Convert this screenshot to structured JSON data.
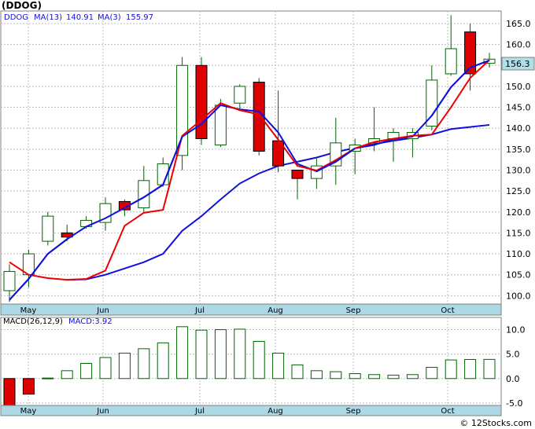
{
  "ticker_title": "(DDOG)",
  "credit": "© 12Stocks.com",
  "colors": {
    "up": "#006400",
    "down": "#dd0000",
    "ma_fast": "#ee0000",
    "ma_slow": "#1010dd",
    "axis_bar": "#add8e6",
    "grid": "#bdbdbd",
    "macd_bar": "#006400",
    "price_tag": "#b0e0e6"
  },
  "legend": {
    "ticker": "DDOG",
    "ma13": "MA(13)",
    "ma13_value": "140.91",
    "ma3": "MA(3)",
    "ma3_value": "155.97"
  },
  "last_price": "156.3",
  "macd_legend": {
    "label": "MACD(26,12,9)",
    "value_label": "MACD:3.92"
  },
  "chart_data": [
    {
      "type": "candlestick",
      "title": "(DDOG)",
      "x_months": [
        "May",
        "Jun",
        "Jul",
        "Aug",
        "Sep",
        "Oct"
      ],
      "ylim": [
        98,
        168
      ],
      "y_ticks": [
        "100.0",
        "105.0",
        "110.0",
        "115.0",
        "120.0",
        "125.0",
        "130.0",
        "135.0",
        "140.0",
        "145.0",
        "150.0",
        "155.0",
        "160.0",
        "165.0"
      ],
      "candles": [
        {
          "o": 101.2,
          "c": 105.8,
          "h": 107.5,
          "l": 98.5
        },
        {
          "o": 105.0,
          "c": 110.0,
          "h": 111.0,
          "l": 102.0
        },
        {
          "o": 113.0,
          "c": 119.0,
          "h": 120.0,
          "l": 112.0
        },
        {
          "o": 115.0,
          "c": 114.0,
          "h": 117.0,
          "l": 113.0
        },
        {
          "o": 116.5,
          "c": 118.0,
          "h": 119.0,
          "l": 116.0
        },
        {
          "o": 117.5,
          "c": 122.0,
          "h": 123.5,
          "l": 115.5
        },
        {
          "o": 122.5,
          "c": 120.5,
          "h": 123.0,
          "l": 119.0
        },
        {
          "o": 121.0,
          "c": 127.5,
          "h": 131.0,
          "l": 120.0
        },
        {
          "o": 126.5,
          "c": 131.5,
          "h": 133.0,
          "l": 126.0
        },
        {
          "o": 133.5,
          "c": 155.0,
          "h": 157.0,
          "l": 130.0
        },
        {
          "o": 155.0,
          "c": 137.5,
          "h": 157.0,
          "l": 136.0
        },
        {
          "o": 136.0,
          "c": 145.5,
          "h": 147.0,
          "l": 135.5
        },
        {
          "o": 146.0,
          "c": 150.0,
          "h": 150.5,
          "l": 144.5
        },
        {
          "o": 151.0,
          "c": 134.5,
          "h": 152.0,
          "l": 133.5
        },
        {
          "o": 137.0,
          "c": 131.0,
          "h": 149.0,
          "l": 129.5
        },
        {
          "o": 130.0,
          "c": 128.0,
          "h": 130.0,
          "l": 123.0
        },
        {
          "o": 128.0,
          "c": 131.0,
          "h": 133.0,
          "l": 125.5
        },
        {
          "o": 131.0,
          "c": 136.5,
          "h": 142.5,
          "l": 126.5
        },
        {
          "o": 134.5,
          "c": 136.0,
          "h": 137.5,
          "l": 129.0
        },
        {
          "o": 136.5,
          "c": 137.5,
          "h": 145.0,
          "l": 134.5
        },
        {
          "o": 137.5,
          "c": 139.0,
          "h": 140.0,
          "l": 132.0
        },
        {
          "o": 137.5,
          "c": 139.0,
          "h": 140.0,
          "l": 133.0
        },
        {
          "o": 140.5,
          "c": 151.5,
          "h": 155.0,
          "l": 139.5
        },
        {
          "o": 153.0,
          "c": 159.0,
          "h": 167.0,
          "l": 152.5
        },
        {
          "o": 163.0,
          "c": 153.0,
          "h": 165.0,
          "l": 149.0
        },
        {
          "o": 155.5,
          "c": 156.5,
          "h": 158.0,
          "l": 154.5
        }
      ],
      "series": [
        {
          "name": "MA(3)",
          "points": [
            [
              0,
              108.0
            ],
            [
              1,
              105.0
            ],
            [
              2,
              104.2
            ],
            [
              3,
              103.8
            ],
            [
              4,
              104.0
            ],
            [
              5,
              106.0
            ],
            [
              6,
              116.7
            ],
            [
              7,
              119.8
            ],
            [
              8,
              120.5
            ],
            [
              9,
              138.2
            ],
            [
              10,
              142.0
            ],
            [
              11,
              146.0
            ],
            [
              12,
              144.3
            ],
            [
              13,
              143.3
            ],
            [
              14,
              137.3
            ],
            [
              15,
              131.0
            ],
            [
              16,
              129.9
            ],
            [
              17,
              132.4
            ],
            [
              18,
              135.2
            ],
            [
              19,
              136.7
            ],
            [
              20,
              137.5
            ],
            [
              21,
              138.2
            ],
            [
              22,
              138.5
            ],
            [
              23,
              145.0
            ],
            [
              24,
              152.0
            ],
            [
              25,
              156.3
            ]
          ]
        },
        {
          "name": "MA(13)",
          "points": [
            [
              0,
              99.0
            ],
            [
              1,
              104.0
            ],
            [
              2,
              110.0
            ],
            [
              3,
              113.5
            ],
            [
              4,
              116.5
            ],
            [
              5,
              118.5
            ],
            [
              6,
              121.0
            ],
            [
              7,
              123.5
            ],
            [
              8,
              126.5
            ],
            [
              9,
              138.0
            ],
            [
              10,
              141.0
            ],
            [
              11,
              145.5
            ],
            [
              12,
              144.5
            ],
            [
              13,
              144.0
            ],
            [
              14,
              139.0
            ],
            [
              15,
              131.5
            ],
            [
              16,
              129.7
            ],
            [
              17,
              132.0
            ],
            [
              18,
              135.2
            ],
            [
              19,
              136.0
            ],
            [
              20,
              137.4
            ],
            [
              21,
              138.0
            ],
            [
              22,
              143.0
            ],
            [
              23,
              149.8
            ],
            [
              24,
              154.5
            ],
            [
              25,
              156.2
            ]
          ]
        },
        {
          "name": "MA(13) slow",
          "points": [
            [
              3,
              103.8
            ],
            [
              4,
              103.9
            ],
            [
              5,
              105.0
            ],
            [
              6,
              106.5
            ],
            [
              7,
              108.0
            ],
            [
              8,
              110.0
            ],
            [
              9,
              115.5
            ],
            [
              10,
              119.0
            ],
            [
              11,
              123.0
            ],
            [
              12,
              126.8
            ],
            [
              13,
              129.2
            ],
            [
              14,
              131.0
            ],
            [
              15,
              132.0
            ],
            [
              16,
              133.0
            ],
            [
              17,
              134.3
            ],
            [
              18,
              135.3
            ],
            [
              19,
              136.2
            ],
            [
              20,
              137.0
            ],
            [
              21,
              137.7
            ],
            [
              22,
              138.5
            ],
            [
              23,
              139.8
            ],
            [
              24,
              140.3
            ],
            [
              25,
              140.8
            ]
          ]
        }
      ]
    },
    {
      "type": "bar",
      "title": "MACD(26,12,9)",
      "ylim": [
        -5.5,
        12.5
      ],
      "y_ticks": [
        "10.0",
        "5.0",
        "0.0",
        "-5.0"
      ],
      "values": [
        -5.8,
        -3.2,
        0.1,
        1.6,
        3.1,
        4.3,
        5.2,
        6.1,
        7.3,
        10.6,
        9.9,
        10.0,
        10.1,
        7.6,
        5.2,
        2.8,
        1.6,
        1.4,
        1.0,
        0.8,
        0.7,
        0.8,
        2.3,
        3.8,
        3.9,
        3.92
      ]
    }
  ]
}
